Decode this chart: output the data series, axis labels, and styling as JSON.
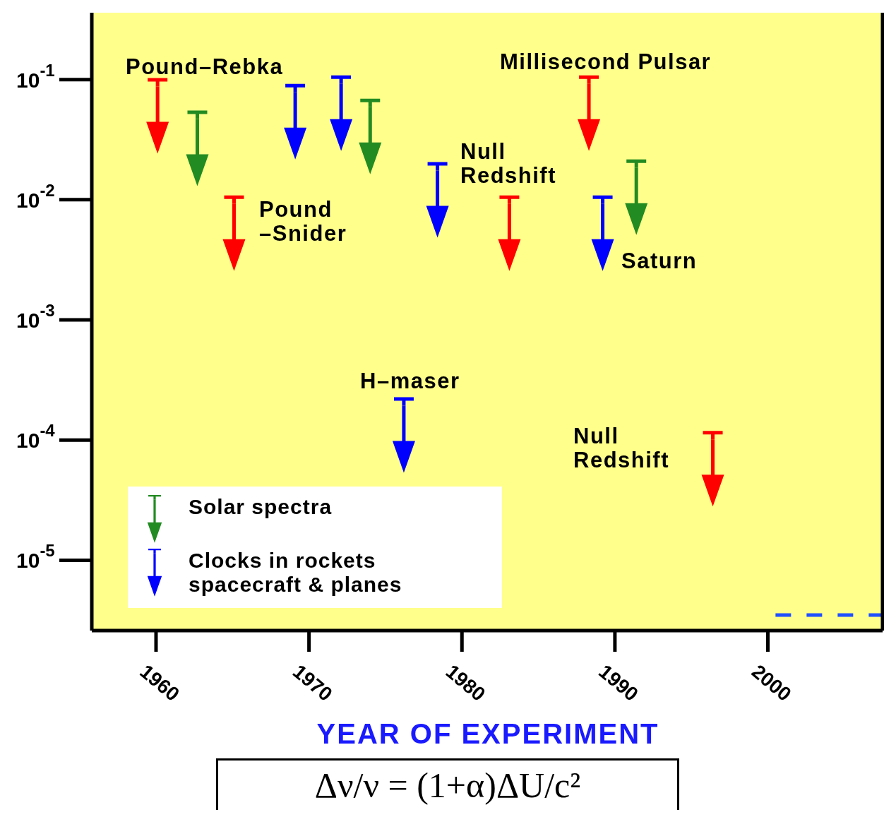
{
  "chart_data": {
    "type": "scatter",
    "xlabel": "YEAR OF EXPERIMENT",
    "log": "y",
    "grid": false,
    "legend": "bottom left",
    "xlim": [
      1955.8,
      2007.5
    ],
    "xticks": [
      1960,
      1970,
      1980,
      1990,
      2000
    ],
    "ylim": [
      2.6e-06,
      0.36
    ],
    "yticks": [
      {
        "value": 0.1,
        "label": "10$^{-1}$"
      },
      {
        "value": 0.01,
        "label": "10$^{-2}$"
      },
      {
        "value": 0.001,
        "label": "10$^{-3}$"
      },
      {
        "value": 0.0001,
        "label": "10$^{-4}$"
      },
      {
        "value": 1e-05,
        "label": "10$^{-5}$"
      }
    ],
    "series": [
      {
        "color": "#ff0000",
        "x": [
          1960.1,
          1965.1,
          1983.1,
          1988.3,
          1996.4
        ],
        "values": [
          0.095,
          0.01,
          0.01,
          0.1,
          0.00011
        ]
      },
      {
        "name": "Solar spectra",
        "color": "#228b22",
        "x": [
          1962.7,
          1974.0,
          1991.4
        ],
        "values": [
          0.051,
          0.064,
          0.02
        ]
      },
      {
        "name": "Clocks in rockets spacecraft & planes",
        "color": "#0000ff",
        "x": [
          1969.1,
          1972.1,
          1976.2,
          1978.4,
          1989.2
        ],
        "values": [
          0.085,
          0.1,
          0.00021,
          0.019,
          0.01
        ]
      },
      {
        "type": "line",
        "color": "#1f4fff",
        "line_style": "dashed",
        "x": [
          2000.5,
          2007.5
        ],
        "values": [
          3.5e-06,
          3.5e-06
        ]
      }
    ],
    "annotations": [
      "Pound–Rebka",
      "Millisecond Pulsar",
      "Null\nRedshift",
      "Pound\n–Snider",
      "Saturn",
      "H–maser",
      "Null\nRedshift",
      "Δν/ν = (1+α)ΔU/c²"
    ]
  }
}
